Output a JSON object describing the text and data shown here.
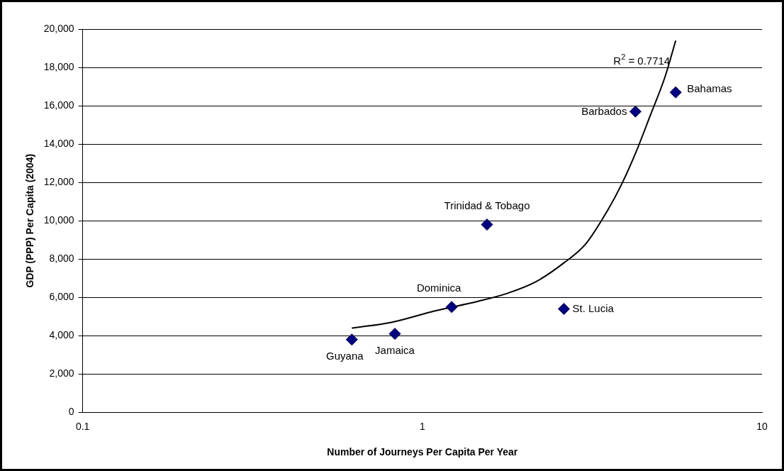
{
  "chart_data": {
    "type": "scatter",
    "xlabel": "Number of Journeys Per Capita Per Year",
    "ylabel": "GDP (PPP) Per Capita (2004)",
    "log": "x",
    "xlim": [
      0.1,
      10
    ],
    "xticks": [
      0.1,
      1,
      10
    ],
    "ylim": [
      0,
      20000
    ],
    "yticks": [
      0,
      {
        "value": 2000,
        "label": "2,000"
      },
      {
        "value": 4000,
        "label": "4,000"
      },
      {
        "value": 6000,
        "label": "6,000"
      },
      {
        "value": 8000,
        "label": "8,000"
      },
      {
        "value": 10000,
        "label": "10,000"
      },
      {
        "value": 12000,
        "label": "12,000"
      },
      {
        "value": 14000,
        "label": "14,000"
      },
      {
        "value": 16000,
        "label": "16,000"
      },
      {
        "value": 18000,
        "label": "18,000"
      },
      {
        "value": 20000,
        "label": "20,000"
      }
    ],
    "grid": "y",
    "legend": false,
    "marker": "diamond",
    "series": [
      {
        "name": "Guyana",
        "color": "#000080",
        "x": [
          0.62
        ],
        "values": [
          3800
        ]
      },
      {
        "name": "Jamaica",
        "color": "#000080",
        "x": [
          0.83
        ],
        "values": [
          4100
        ]
      },
      {
        "name": "Dominica",
        "color": "#000080",
        "x": [
          1.22
        ],
        "values": [
          5500
        ]
      },
      {
        "name": "Trinidad & Tobago",
        "color": "#000080",
        "x": [
          1.55
        ],
        "values": [
          9800
        ]
      },
      {
        "name": "St. Lucia",
        "color": "#000080",
        "x": [
          2.61
        ],
        "values": [
          5400
        ]
      },
      {
        "name": "Barbados",
        "color": "#000080",
        "x": [
          4.24
        ],
        "values": [
          15700
        ]
      },
      {
        "name": "Bahamas",
        "color": "#000080",
        "x": [
          5.57
        ],
        "values": [
          16700
        ]
      },
      {
        "type": "line",
        "color": "#000000",
        "marker": "none",
        "x": [
          0.62,
          0.81,
          1.09,
          1.46,
          1.77,
          2.15,
          2.61,
          3.03,
          3.5,
          3.86,
          4.26,
          4.69,
          5.18,
          5.57
        ],
        "values": [
          4400,
          4700,
          5300,
          5800,
          6200,
          6800,
          7800,
          8800,
          10500,
          11900,
          13600,
          15500,
          17500,
          19400
        ]
      }
    ],
    "annotations": [
      {
        "text": "R$^{2}$ = 0.7714",
        "x": 5.57,
        "y": 19400
      }
    ]
  }
}
